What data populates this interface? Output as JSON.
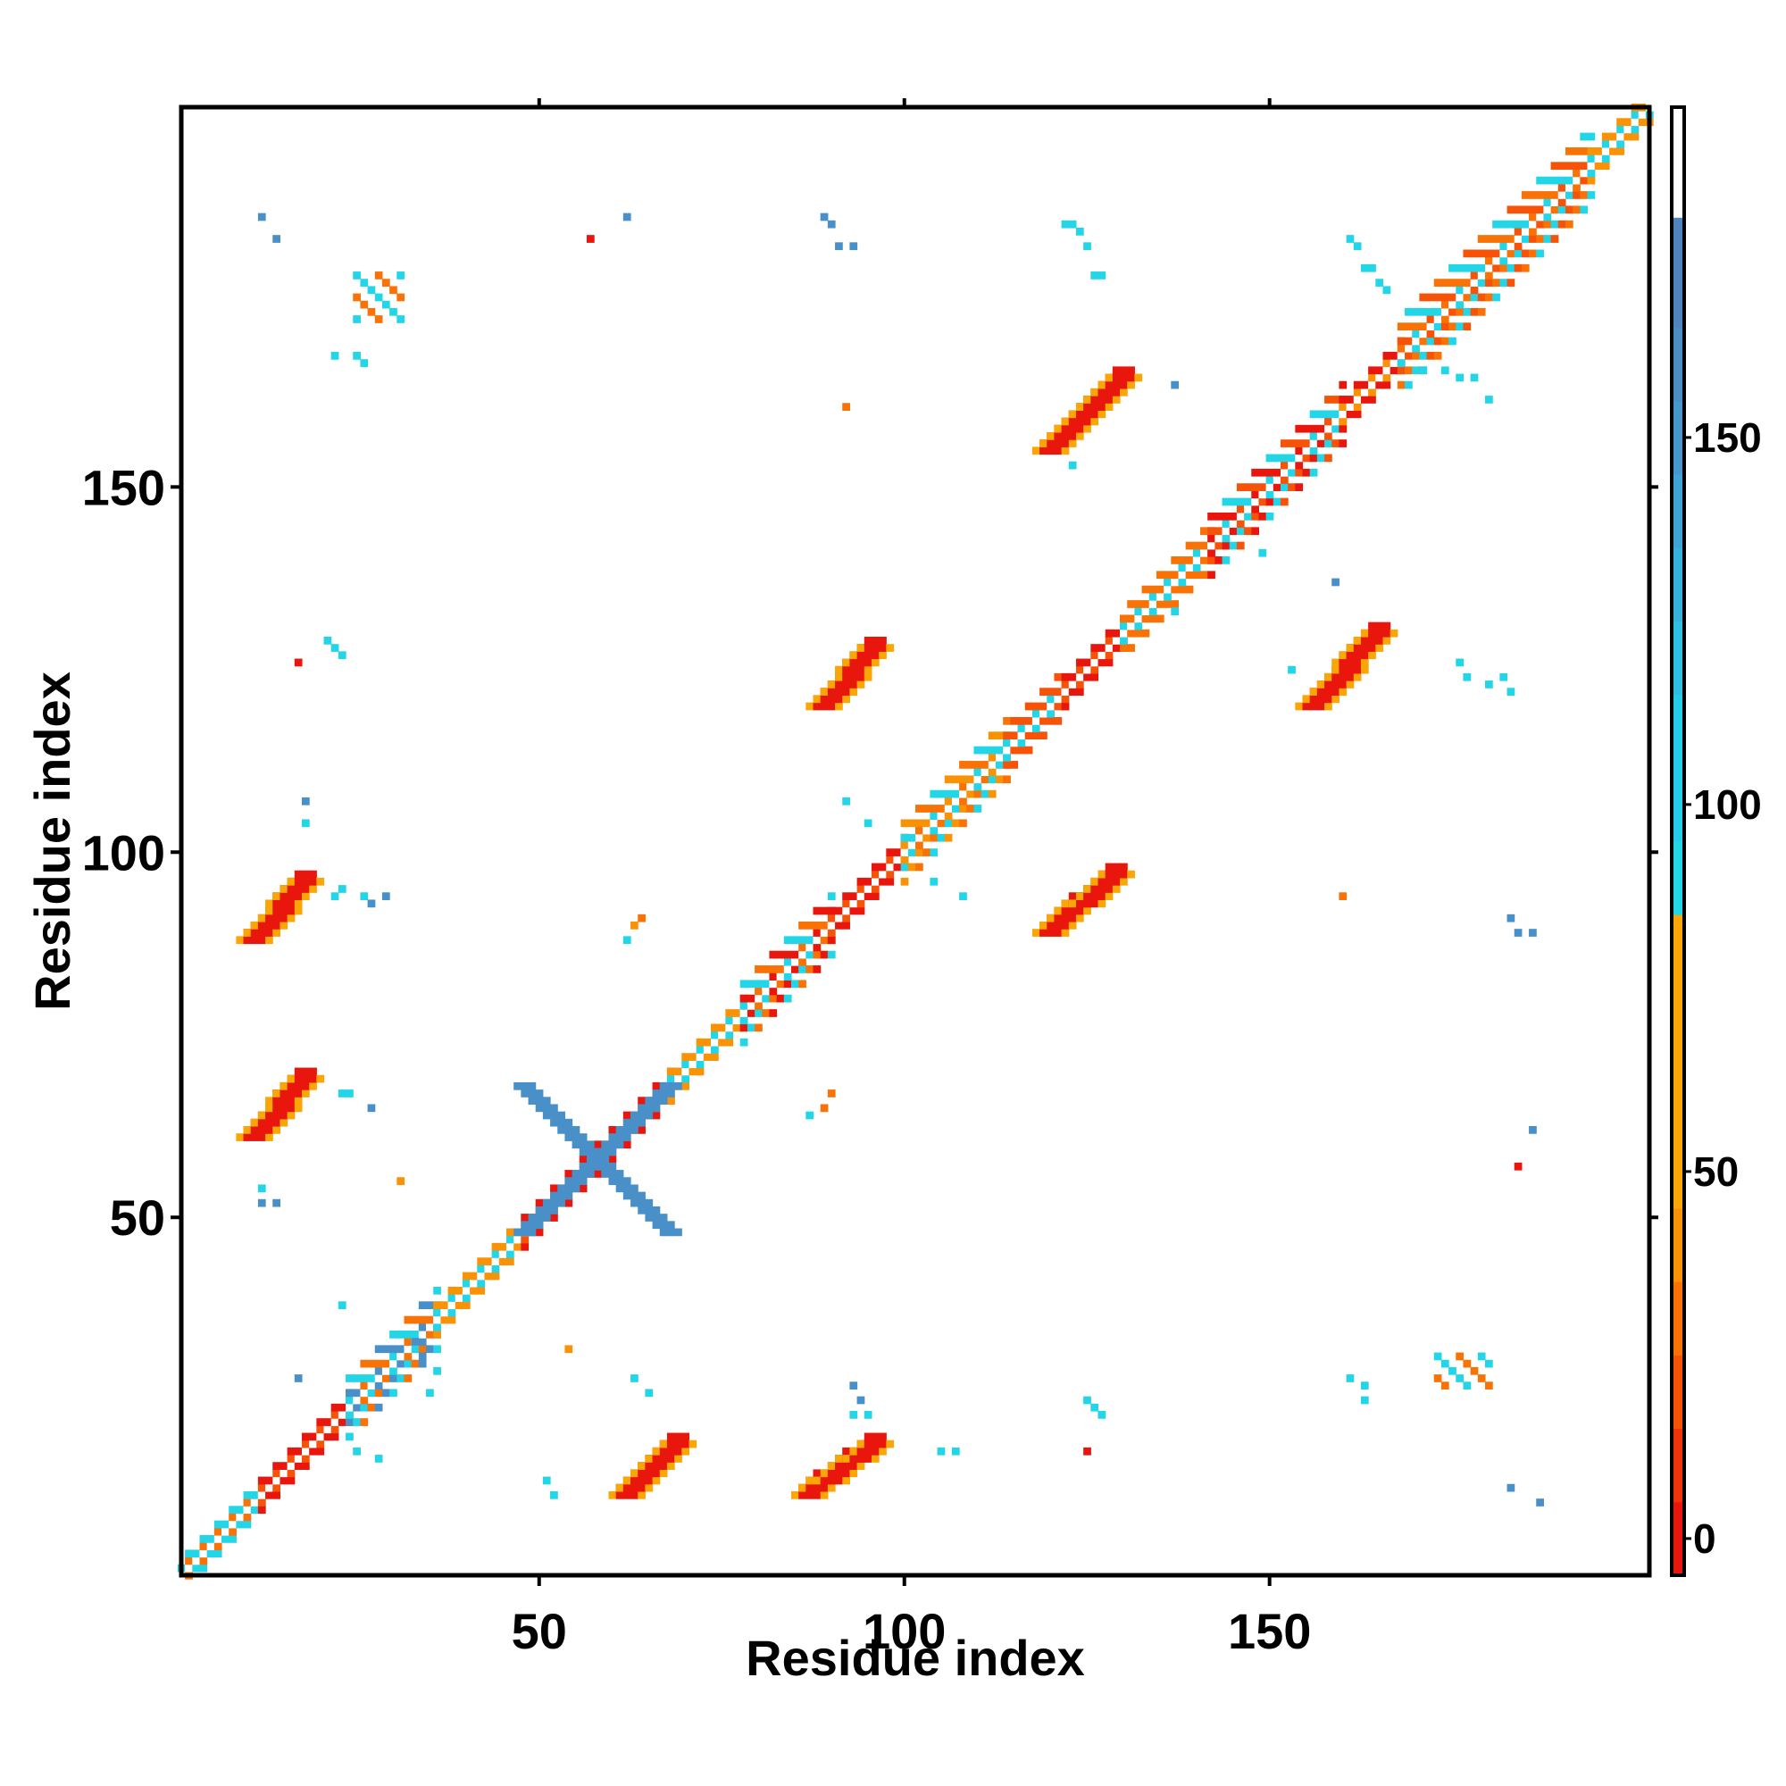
{
  "chart_data": {
    "type": "heatmap",
    "title": "",
    "xlabel": "Residue index",
    "ylabel": "Residue index",
    "xlim": [
      1,
      202
    ],
    "ylim": [
      1,
      202
    ],
    "x_ticks": [
      50,
      100,
      150
    ],
    "y_ticks": [
      50,
      100,
      150
    ],
    "grid": false,
    "legend": "colorbar right",
    "colorbar": {
      "range": [
        -5,
        195
      ],
      "ticks": [
        0,
        50,
        100,
        150
      ],
      "bands": [
        {
          "from": -5,
          "to": 5,
          "color": "#e8160c"
        },
        {
          "from": 5,
          "to": 15,
          "color": "#f0330a"
        },
        {
          "from": 15,
          "to": 25,
          "color": "#f65308"
        },
        {
          "from": 25,
          "to": 35,
          "color": "#f87206"
        },
        {
          "from": 35,
          "to": 45,
          "color": "#f99205"
        },
        {
          "from": 45,
          "to": 55,
          "color": "#f9a606"
        },
        {
          "from": 55,
          "to": 75,
          "color": "#f9a606"
        },
        {
          "from": 75,
          "to": 85,
          "color": "#f9a606"
        },
        {
          "from": 85,
          "to": 95,
          "color": "#22d6e8"
        },
        {
          "from": 95,
          "to": 115,
          "color": "#26cde6"
        },
        {
          "from": 115,
          "to": 125,
          "color": "#2ec0e0"
        },
        {
          "from": 125,
          "to": 135,
          "color": "#36b2da"
        },
        {
          "from": 135,
          "to": 145,
          "color": "#3ea4d4"
        },
        {
          "from": 145,
          "to": 155,
          "color": "#4697cc"
        },
        {
          "from": 155,
          "to": 165,
          "color": "#4b8dc5"
        },
        {
          "from": 165,
          "to": 180,
          "color": "#4f84be"
        },
        {
          "from": 180,
          "to": 195,
          "color": "#ffffff"
        }
      ]
    },
    "diagonal": {
      "segments": [
        {
          "from": 1,
          "to": 12,
          "band_width": 2,
          "colors": [
            "#22d6e8",
            "#f87206"
          ]
        },
        {
          "from": 12,
          "to": 24,
          "band_width": 2,
          "colors": [
            "#e8160c",
            "#f65308"
          ]
        },
        {
          "from": 24,
          "to": 36,
          "band_width": 4,
          "colors": [
            "#f87206",
            "#22d6e8",
            "#4a90c8"
          ]
        },
        {
          "from": 36,
          "to": 48,
          "band_width": 2,
          "colors": [
            "#f99205",
            "#22d6e8"
          ]
        },
        {
          "from": 48,
          "to": 68,
          "band_width": 2,
          "colors": [
            "#e8160c",
            "#f65308"
          ]
        },
        {
          "from": 68,
          "to": 78,
          "band_width": 2,
          "colors": [
            "#f99205",
            "#22d6e8"
          ]
        },
        {
          "from": 78,
          "to": 90,
          "band_width": 4,
          "colors": [
            "#f87206",
            "#22d6e8",
            "#e8160c"
          ]
        },
        {
          "from": 90,
          "to": 100,
          "band_width": 2,
          "colors": [
            "#e8160c",
            "#f65308"
          ]
        },
        {
          "from": 100,
          "to": 114,
          "band_width": 4,
          "colors": [
            "#22d6e8",
            "#f87206",
            "#f99205"
          ]
        },
        {
          "from": 114,
          "to": 122,
          "band_width": 3,
          "colors": [
            "#f65308",
            "#22d6e8"
          ]
        },
        {
          "from": 122,
          "to": 130,
          "band_width": 2,
          "colors": [
            "#e8160c",
            "#f65308"
          ]
        },
        {
          "from": 130,
          "to": 142,
          "band_width": 3,
          "colors": [
            "#f87206",
            "#22d6e8"
          ]
        },
        {
          "from": 142,
          "to": 160,
          "band_width": 4,
          "colors": [
            "#f65308",
            "#22d6e8",
            "#e8160c"
          ]
        },
        {
          "from": 160,
          "to": 168,
          "band_width": 2,
          "colors": [
            "#e8160c",
            "#f99205"
          ]
        },
        {
          "from": 168,
          "to": 194,
          "band_width": 5,
          "colors": [
            "#22d6e8",
            "#f87206",
            "#f65308"
          ]
        },
        {
          "from": 194,
          "to": 202,
          "band_width": 2,
          "colors": [
            "#f99205",
            "#22d6e8"
          ]
        }
      ]
    },
    "cross_bands": [
      {
        "center": [
          58,
          58
        ],
        "half_length": 10,
        "color": "#4a90c8"
      }
    ],
    "blocks": [
      {
        "x": [
          11,
          18
        ],
        "y": [
          88,
          96
        ],
        "kind": "parallel",
        "color": "#e8160c",
        "edge": "#f9a606"
      },
      {
        "x": [
          11,
          18
        ],
        "y": [
          61,
          69
        ],
        "kind": "parallel",
        "color": "#e8160c",
        "edge": "#f9a606"
      },
      {
        "x": [
          62,
          69
        ],
        "y": [
          12,
          19
        ],
        "kind": "parallel",
        "color": "#e8160c",
        "edge": "#f9a606"
      },
      {
        "x": [
          87,
          96
        ],
        "y": [
          12,
          19
        ],
        "kind": "parallel",
        "color": "#e8160c",
        "edge": "#f9a606"
      },
      {
        "x": [
          89,
          96
        ],
        "y": [
          120,
          128
        ],
        "kind": "parallel",
        "color": "#e8160c",
        "edge": "#f9a606"
      },
      {
        "x": [
          120,
          129
        ],
        "y": [
          89,
          97
        ],
        "kind": "parallel",
        "color": "#e8160c",
        "edge": "#f9a606"
      },
      {
        "x": [
          120,
          130
        ],
        "y": [
          155,
          165
        ],
        "kind": "parallel",
        "color": "#e8160c",
        "edge": "#f9a606"
      },
      {
        "x": [
          156,
          165
        ],
        "y": [
          120,
          130
        ],
        "kind": "parallel",
        "color": "#e8160c",
        "edge": "#f9a606"
      },
      {
        "x": [
          25,
          31
        ],
        "y": [
          173,
          179
        ],
        "kind": "scatter",
        "color": "#f87206",
        "edge": "#22d6e8"
      },
      {
        "x": [
          173,
          180
        ],
        "y": [
          27,
          31
        ],
        "kind": "scatter",
        "color": "#f87206",
        "edge": "#22d6e8"
      }
    ],
    "scatter_cells": [
      [
        12,
        187,
        "#4a90c8"
      ],
      [
        14,
        184,
        "#4a90c8"
      ],
      [
        62,
        187,
        "#4a90c8"
      ],
      [
        89,
        187,
        "#4a90c8"
      ],
      [
        90,
        186,
        "#4a90c8"
      ],
      [
        91,
        183,
        "#4a90c8"
      ],
      [
        93,
        183,
        "#4a90c8"
      ],
      [
        122,
        186,
        "#22d6e8"
      ],
      [
        123,
        186,
        "#22d6e8"
      ],
      [
        124,
        185,
        "#22d6e8"
      ],
      [
        125,
        183,
        "#22d6e8"
      ],
      [
        126,
        179,
        "#22d6e8"
      ],
      [
        127,
        179,
        "#22d6e8"
      ],
      [
        57,
        184,
        "#e8160c"
      ],
      [
        22,
        168,
        "#22d6e8"
      ],
      [
        25,
        168,
        "#22d6e8"
      ],
      [
        26,
        167,
        "#22d6e8"
      ],
      [
        92,
        161,
        "#f87206"
      ],
      [
        137,
        164,
        "#4a90c8"
      ],
      [
        161,
        184,
        "#22d6e8"
      ],
      [
        162,
        183,
        "#22d6e8"
      ],
      [
        163,
        180,
        "#22d6e8"
      ],
      [
        164,
        180,
        "#22d6e8"
      ],
      [
        165,
        178,
        "#22d6e8"
      ],
      [
        166,
        177,
        "#22d6e8"
      ],
      [
        168,
        167,
        "#22d6e8"
      ],
      [
        171,
        166,
        "#22d6e8"
      ],
      [
        174,
        166,
        "#22d6e8"
      ],
      [
        176,
        165,
        "#22d6e8"
      ],
      [
        178,
        165,
        "#22d6e8"
      ],
      [
        180,
        162,
        "#22d6e8"
      ],
      [
        123,
        153,
        "#22d6e8"
      ],
      [
        21,
        129,
        "#22d6e8"
      ],
      [
        22,
        128,
        "#22d6e8"
      ],
      [
        23,
        127,
        "#22d6e8"
      ],
      [
        17,
        126,
        "#e8160c"
      ],
      [
        159,
        137,
        "#4a90c8"
      ],
      [
        149,
        141,
        "#22d6e8"
      ],
      [
        137,
        133,
        "#22d6e8"
      ],
      [
        176,
        126,
        "#22d6e8"
      ],
      [
        177,
        124,
        "#22d6e8"
      ],
      [
        180,
        123,
        "#22d6e8"
      ],
      [
        182,
        124,
        "#22d6e8"
      ],
      [
        183,
        122,
        "#22d6e8"
      ],
      [
        153,
        125,
        "#22d6e8"
      ],
      [
        18,
        107,
        "#4a90c8"
      ],
      [
        18,
        104,
        "#22d6e8"
      ],
      [
        92,
        107,
        "#22d6e8"
      ],
      [
        95,
        104,
        "#22d6e8"
      ],
      [
        104,
        96,
        "#22d6e8"
      ],
      [
        108,
        94,
        "#22d6e8"
      ],
      [
        23,
        95,
        "#22d6e8"
      ],
      [
        22,
        94,
        "#22d6e8"
      ],
      [
        26,
        94,
        "#22d6e8"
      ],
      [
        27,
        93,
        "#4a90c8"
      ],
      [
        29,
        94,
        "#4a90c8"
      ],
      [
        64,
        91,
        "#f87206"
      ],
      [
        63,
        90,
        "#f99205"
      ],
      [
        62,
        88,
        "#22d6e8"
      ],
      [
        160,
        94,
        "#f87206"
      ],
      [
        183,
        91,
        "#4a90c8"
      ],
      [
        184,
        89,
        "#4a90c8"
      ],
      [
        186,
        89,
        "#4a90c8"
      ],
      [
        23,
        67,
        "#22d6e8"
      ],
      [
        24,
        67,
        "#22d6e8"
      ],
      [
        27,
        65,
        "#4a90c8"
      ],
      [
        90,
        67,
        "#f87206"
      ],
      [
        89,
        65,
        "#f87206"
      ],
      [
        87,
        64,
        "#22d6e8"
      ],
      [
        31,
        55,
        "#f99205"
      ],
      [
        12,
        54,
        "#22d6e8"
      ],
      [
        12,
        52,
        "#4a90c8"
      ],
      [
        14,
        52,
        "#4a90c8"
      ],
      [
        186,
        62,
        "#4a90c8"
      ],
      [
        184,
        57,
        "#e8160c"
      ],
      [
        23,
        38,
        "#22d6e8"
      ],
      [
        54,
        32,
        "#f99205"
      ],
      [
        35,
        26,
        "#22d6e8"
      ],
      [
        63,
        28,
        "#22d6e8"
      ],
      [
        65,
        26,
        "#22d6e8"
      ],
      [
        93,
        27,
        "#4a90c8"
      ],
      [
        94,
        25,
        "#4a90c8"
      ],
      [
        93,
        23,
        "#22d6e8"
      ],
      [
        95,
        23,
        "#22d6e8"
      ],
      [
        105,
        18,
        "#22d6e8"
      ],
      [
        107,
        18,
        "#22d6e8"
      ],
      [
        125,
        25,
        "#22d6e8"
      ],
      [
        126,
        24,
        "#22d6e8"
      ],
      [
        127,
        23,
        "#22d6e8"
      ],
      [
        125,
        18,
        "#e8160c"
      ],
      [
        161,
        28,
        "#22d6e8"
      ],
      [
        163,
        27,
        "#22d6e8"
      ],
      [
        163,
        25,
        "#22d6e8"
      ],
      [
        51,
        14,
        "#22d6e8"
      ],
      [
        52,
        12,
        "#22d6e8"
      ],
      [
        183,
        13,
        "#4a90c8"
      ],
      [
        187,
        11,
        "#4a90c8"
      ],
      [
        17,
        28,
        "#4a90c8"
      ],
      [
        25,
        18,
        "#22d6e8"
      ],
      [
        28,
        17,
        "#22d6e8"
      ],
      [
        33,
        33,
        "#4a90c8"
      ],
      [
        34,
        31,
        "#4a90c8"
      ],
      [
        36,
        29,
        "#22d6e8"
      ]
    ]
  }
}
